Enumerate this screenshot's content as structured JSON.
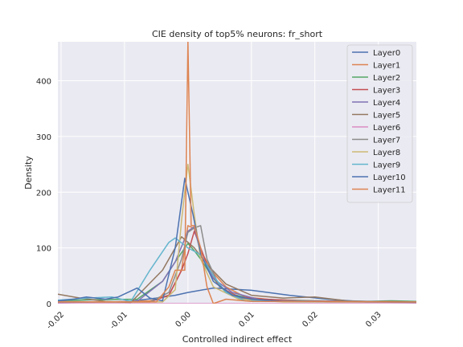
{
  "chart_data": {
    "type": "line",
    "title": "CIE density of top5% neurons: fr_short",
    "xlabel": "Controlled indirect effect",
    "ylabel": "Density",
    "xlim": [
      -0.0205,
      0.036
    ],
    "ylim": [
      0,
      470
    ],
    "x_ticks": [
      -0.02,
      -0.01,
      0.0,
      0.01,
      0.02,
      0.03
    ],
    "x_tick_labels": [
      "-0.02",
      "-0.01",
      "0.00",
      "0.01",
      "0.02",
      "0.03"
    ],
    "y_ticks": [
      0,
      100,
      200,
      300,
      400
    ],
    "y_tick_labels": [
      "0",
      "100",
      "200",
      "300",
      "400"
    ],
    "grid": true,
    "legend_position": "top-right",
    "series": [
      {
        "name": "Layer0",
        "color": "#4c72b0",
        "points": [
          [
            -0.0205,
            2
          ],
          [
            -0.016,
            3
          ],
          [
            -0.01,
            3
          ],
          [
            -0.005,
            10
          ],
          [
            -0.002,
            15
          ],
          [
            0.0,
            20
          ],
          [
            0.004,
            28
          ],
          [
            0.01,
            24
          ],
          [
            0.016,
            15
          ],
          [
            0.022,
            8
          ],
          [
            0.028,
            3
          ],
          [
            0.036,
            3
          ]
        ]
      },
      {
        "name": "Layer1",
        "color": "#dd8452",
        "points": [
          [
            -0.0205,
            3
          ],
          [
            -0.012,
            3
          ],
          [
            -0.006,
            5
          ],
          [
            -0.003,
            15
          ],
          [
            -0.001,
            60
          ],
          [
            0.0,
            140
          ],
          [
            0.001,
            135
          ],
          [
            0.002,
            95
          ],
          [
            0.004,
            55
          ],
          [
            0.006,
            30
          ],
          [
            0.009,
            12
          ],
          [
            0.015,
            5
          ],
          [
            0.022,
            3
          ],
          [
            0.036,
            3
          ]
        ]
      },
      {
        "name": "Layer2",
        "color": "#55a868",
        "points": [
          [
            -0.0205,
            5
          ],
          [
            -0.015,
            7
          ],
          [
            -0.008,
            8
          ],
          [
            -0.004,
            40
          ],
          [
            -0.002,
            75
          ],
          [
            0.0,
            108
          ],
          [
            0.001,
            95
          ],
          [
            0.002,
            80
          ],
          [
            0.004,
            45
          ],
          [
            0.006,
            20
          ],
          [
            0.01,
            8
          ],
          [
            0.02,
            5
          ],
          [
            0.028,
            4
          ],
          [
            0.032,
            5
          ],
          [
            0.036,
            4
          ]
        ]
      },
      {
        "name": "Layer3",
        "color": "#c44e52",
        "points": [
          [
            -0.0205,
            3
          ],
          [
            -0.012,
            3
          ],
          [
            -0.006,
            3
          ],
          [
            -0.003,
            15
          ],
          [
            -0.001,
            60
          ],
          [
            0.0,
            90
          ],
          [
            0.001,
            130
          ],
          [
            0.003,
            70
          ],
          [
            0.005,
            30
          ],
          [
            0.008,
            12
          ],
          [
            0.012,
            8
          ],
          [
            0.018,
            5
          ],
          [
            0.036,
            3
          ]
        ]
      },
      {
        "name": "Layer4",
        "color": "#8172b3",
        "points": [
          [
            -0.0205,
            2
          ],
          [
            -0.014,
            3
          ],
          [
            -0.008,
            4
          ],
          [
            -0.004,
            40
          ],
          [
            -0.002,
            75
          ],
          [
            0.0,
            130
          ],
          [
            0.001,
            138
          ],
          [
            0.002,
            90
          ],
          [
            0.004,
            45
          ],
          [
            0.007,
            20
          ],
          [
            0.012,
            5
          ],
          [
            0.036,
            2
          ]
        ]
      },
      {
        "name": "Layer5",
        "color": "#937860",
        "points": [
          [
            -0.0205,
            17
          ],
          [
            -0.017,
            10
          ],
          [
            -0.013,
            4
          ],
          [
            -0.009,
            2
          ],
          [
            -0.004,
            60
          ],
          [
            -0.001,
            120
          ],
          [
            0.0,
            110
          ],
          [
            0.001,
            100
          ],
          [
            0.003,
            70
          ],
          [
            0.006,
            35
          ],
          [
            0.01,
            15
          ],
          [
            0.015,
            10
          ],
          [
            0.02,
            12
          ],
          [
            0.025,
            5
          ],
          [
            0.036,
            2
          ]
        ]
      },
      {
        "name": "Layer6",
        "color": "#da8bc3",
        "points": [
          [
            -0.0205,
            0
          ],
          [
            -0.01,
            0
          ],
          [
            -0.005,
            0
          ],
          [
            -0.003,
            0
          ],
          [
            -0.001,
            0
          ],
          [
            0.0,
            0
          ],
          [
            0.002,
            0
          ],
          [
            0.01,
            0
          ],
          [
            0.036,
            0
          ]
        ]
      },
      {
        "name": "Layer7",
        "color": "#8c8c8c",
        "points": [
          [
            -0.0205,
            4
          ],
          [
            -0.012,
            3
          ],
          [
            -0.006,
            3
          ],
          [
            -0.003,
            20
          ],
          [
            -0.001,
            80
          ],
          [
            0.0,
            128
          ],
          [
            0.001,
            136
          ],
          [
            0.002,
            140
          ],
          [
            0.003,
            80
          ],
          [
            0.005,
            30
          ],
          [
            0.008,
            10
          ],
          [
            0.015,
            4
          ],
          [
            0.036,
            3
          ]
        ]
      },
      {
        "name": "Layer8",
        "color": "#ccb974",
        "points": [
          [
            -0.0205,
            3
          ],
          [
            -0.01,
            3
          ],
          [
            -0.004,
            3
          ],
          [
            -0.002,
            25
          ],
          [
            -0.001,
            150
          ],
          [
            0.0,
            250
          ],
          [
            0.001,
            160
          ],
          [
            0.002,
            80
          ],
          [
            0.004,
            30
          ],
          [
            0.008,
            8
          ],
          [
            0.015,
            3
          ],
          [
            0.036,
            3
          ]
        ]
      },
      {
        "name": "Layer9",
        "color": "#64b5cd",
        "points": [
          [
            -0.0205,
            6
          ],
          [
            -0.016,
            10
          ],
          [
            -0.012,
            12
          ],
          [
            -0.009,
            4
          ],
          [
            -0.006,
            60
          ],
          [
            -0.003,
            110
          ],
          [
            -0.002,
            118
          ],
          [
            0.0,
            100
          ],
          [
            0.002,
            88
          ],
          [
            0.004,
            50
          ],
          [
            0.006,
            20
          ],
          [
            0.009,
            5
          ],
          [
            0.036,
            3
          ]
        ]
      },
      {
        "name": "Layer10",
        "color": "#4c72b0",
        "points": [
          [
            -0.0205,
            5
          ],
          [
            -0.018,
            8
          ],
          [
            -0.016,
            12
          ],
          [
            -0.013,
            8
          ],
          [
            -0.011,
            12
          ],
          [
            -0.008,
            28
          ],
          [
            -0.006,
            10
          ],
          [
            -0.004,
            5
          ],
          [
            -0.002,
            100
          ],
          [
            -0.0005,
            225
          ],
          [
            0.0,
            200
          ],
          [
            0.0008,
            160
          ],
          [
            0.002,
            90
          ],
          [
            0.004,
            40
          ],
          [
            0.007,
            15
          ],
          [
            0.01,
            8
          ],
          [
            0.015,
            4
          ],
          [
            0.036,
            3
          ]
        ]
      },
      {
        "name": "Layer11",
        "color": "#dd8452",
        "points": [
          [
            -0.0205,
            3
          ],
          [
            -0.01,
            3
          ],
          [
            -0.005,
            3
          ],
          [
            -0.003,
            30
          ],
          [
            -0.002,
            60
          ],
          [
            -0.0005,
            60
          ],
          [
            0.0,
            470
          ],
          [
            0.0005,
            140
          ],
          [
            0.001,
            140
          ],
          [
            0.002,
            100
          ],
          [
            0.003,
            30
          ],
          [
            0.004,
            0
          ],
          [
            0.006,
            8
          ],
          [
            0.01,
            4
          ],
          [
            0.036,
            3
          ]
        ]
      }
    ]
  }
}
